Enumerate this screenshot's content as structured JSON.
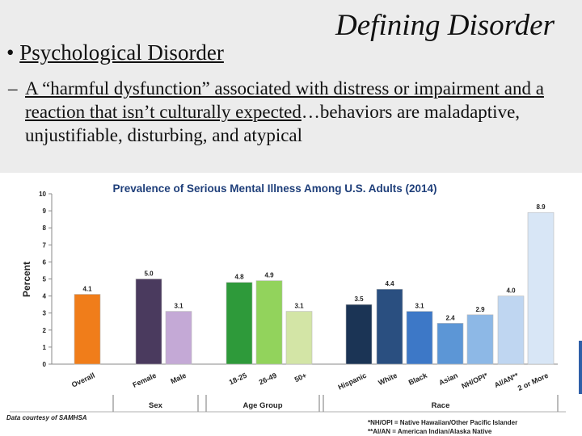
{
  "slide": {
    "title": "Defining Disorder",
    "bullet": "Psychological Disorder",
    "sub_bullet_parts": [
      {
        "text": "A “harmful dysfunction” associated with distress or impairment and a reaction that isn’t culturally expected",
        "underline": true
      },
      {
        "text": "…behaviors are maladaptive, unjustifiable, disturbing, and atypical",
        "underline": false
      }
    ]
  },
  "chart_data": {
    "type": "bar",
    "title": "Prevalence of Serious Mental Illness Among U.S. Adults (2014)",
    "ylabel": "Percent",
    "ylim": [
      0,
      10
    ],
    "yticks": [
      0,
      1,
      2,
      3,
      4,
      5,
      6,
      7,
      8,
      9,
      10
    ],
    "categories": [
      "Overall",
      "Female",
      "Male",
      "18-25",
      "26-49",
      "50+",
      "Hispanic",
      "White",
      "Black",
      "Asian",
      "NH/OPI*",
      "AI/AN**",
      "2 or More"
    ],
    "values": [
      4.1,
      5.0,
      3.1,
      4.8,
      4.9,
      3.1,
      3.5,
      4.4,
      3.1,
      2.4,
      2.9,
      4.0,
      8.9
    ],
    "value_labels": [
      "4.1",
      "5.0",
      "3.1",
      "4.8",
      "4.9",
      "3.1",
      "3.5",
      "4.4",
      "3.1",
      "2.4",
      "2.9",
      "4.0",
      "8.9"
    ],
    "colors": [
      "#f07d1a",
      "#4a3a5e",
      "#c4a9d6",
      "#2e9a3a",
      "#92d35c",
      "#d3e5a6",
      "#1b3455",
      "#2a4f80",
      "#3d78c7",
      "#5c96d6",
      "#8db8e6",
      "#bfd6f1",
      "#d8e6f6"
    ],
    "groups": [
      {
        "name": "",
        "indices": [
          0
        ]
      },
      {
        "name": "Sex",
        "indices": [
          1,
          2
        ]
      },
      {
        "name": "Age Group",
        "indices": [
          3,
          4,
          5
        ]
      },
      {
        "name": "Race",
        "indices": [
          6,
          7,
          8,
          9,
          10,
          11,
          12
        ]
      }
    ],
    "source": "Data courtesy of SAMHSA",
    "footnotes": [
      "*NH/OPI = Native Hawaiian/Other Pacific Islander",
      "**AI/AN = American Indian/Alaska Native"
    ]
  }
}
